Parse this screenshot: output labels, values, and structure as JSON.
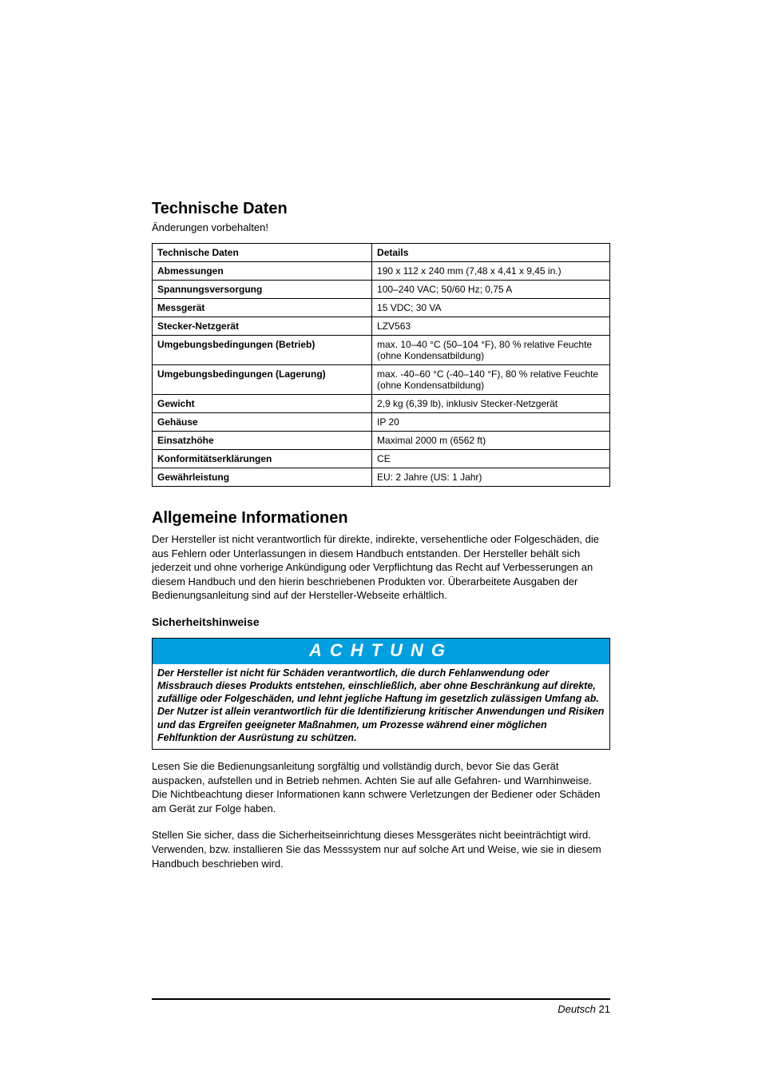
{
  "headings": {
    "tech_data": "Technische Daten",
    "subtext": "Änderungen vorbehalten!",
    "general_info": "Allgemeine Informationen",
    "safety": "Sicherheitshinweise"
  },
  "table": {
    "header_left": "Technische Daten",
    "header_right": "Details",
    "rows": [
      {
        "label": "Abmessungen",
        "value": "190 x 112 x 240 mm (7,48 x 4,41 x 9,45 in.)"
      },
      {
        "label": "Spannungsversorgung",
        "value": "100–240 VAC; 50/60 Hz; 0,75 A"
      },
      {
        "label": "Messgerät",
        "value": "15 VDC; 30 VA"
      },
      {
        "label": "Stecker-Netzgerät",
        "value": "LZV563"
      },
      {
        "label": "Umgebungsbedingungen (Betrieb)",
        "value": "max. 10–40 °C (50–104 °F), 80 % relative Feuchte (ohne Kondensatbildung)"
      },
      {
        "label": "Umgebungsbedingungen (Lagerung)",
        "value": "max. -40–60 °C (-40–140 °F), 80 % relative Feuchte (ohne Kondensatbildung)"
      },
      {
        "label": "Gewicht",
        "value": "2,9 kg (6,39 lb), inklusiv Stecker-Netzgerät"
      },
      {
        "label": "Gehäuse",
        "value": "IP 20"
      },
      {
        "label": "Einsatzhöhe",
        "value": "Maximal 2000 m (6562 ft)"
      },
      {
        "label": "Konformitätserklärungen",
        "value": "CE"
      },
      {
        "label": "Gewährleistung",
        "value": "EU: 2 Jahre (US: 1 Jahr)"
      }
    ]
  },
  "paragraphs": {
    "general_info": "Der Hersteller ist nicht verantwortlich für direkte, indirekte, versehentliche oder Folgeschäden, die aus Fehlern oder Unterlassungen in diesem Handbuch entstanden. Der Hersteller behält sich jederzeit und ohne vorherige Ankündigung oder Verpflichtung das Recht auf Verbesserungen an diesem Handbuch und den hierin beschriebenen Produkten vor. Überarbeitete Ausgaben der Bedienungsanleitung sind auf der Hersteller-Webseite erhältlich.",
    "after_notice_1": "Lesen Sie die Bedienungsanleitung sorgfältig und vollständig durch, bevor Sie das Gerät auspacken, aufstellen und in Betrieb nehmen. Achten Sie auf alle Gefahren- und Warnhinweise. Die Nichtbeachtung dieser Informationen kann schwere Verletzungen der Bediener oder Schäden am Gerät zur Folge haben.",
    "after_notice_2": "Stellen Sie sicher, dass die Sicherheitseinrichtung dieses Messgerätes nicht beeinträchtigt wird. Verwenden, bzw. installieren Sie das Messsystem nur auf solche Art und Weise, wie sie in diesem Handbuch beschrieben wird."
  },
  "notice": {
    "title": "ACHTUNG",
    "body": "Der Hersteller ist nicht für Schäden verantwortlich, die durch Fehlanwendung oder Missbrauch dieses Produkts entstehen, einschließlich, aber ohne Beschränkung auf direkte, zufällige oder Folgeschäden, und lehnt jegliche Haftung im gesetzlich zulässigen Umfang ab. Der Nutzer ist allein verantwortlich für die Identifizierung kritischer Anwendungen und Risiken und das Ergreifen geeigneter Maßnahmen, um Prozesse während einer möglichen Fehlfunktion der Ausrüstung zu schützen.",
    "header_bg": "#009fdf",
    "header_color": "#ffffff"
  },
  "footer": {
    "lang": "Deutsch",
    "page": "21"
  }
}
